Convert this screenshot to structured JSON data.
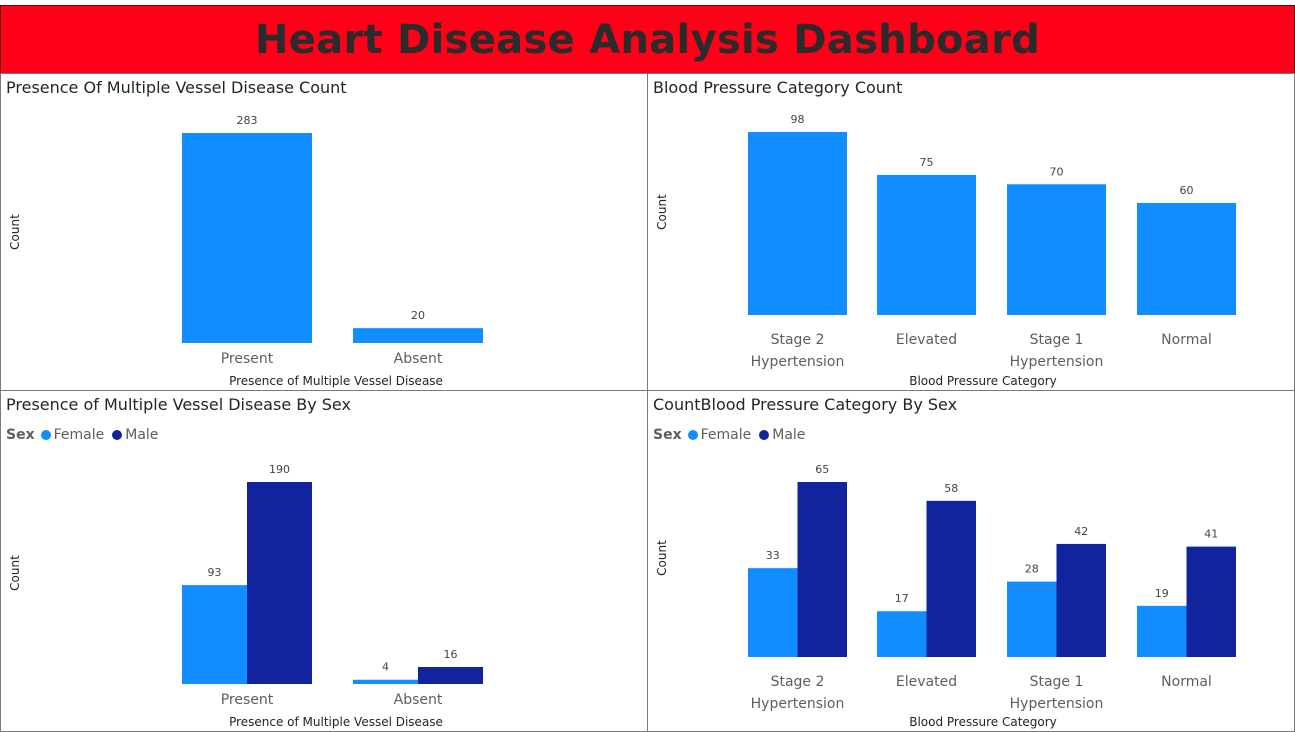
{
  "dashboard": {
    "title": "Heart Disease Analysis Dashboard"
  },
  "colors": {
    "banner": "#ff0018",
    "female": "#118dff",
    "male": "#12239e",
    "single": "#118dff"
  },
  "legend": {
    "title": "Sex",
    "female": "Female",
    "male": "Male"
  },
  "chart_data": [
    {
      "id": "c1",
      "type": "bar",
      "title": "Presence Of Multiple Vessel Disease Count",
      "xlabel": "Presence of Multiple Vessel Disease",
      "ylabel": "Count",
      "categories": [
        [
          "Present"
        ],
        [
          "Absent"
        ]
      ],
      "series": [
        {
          "values": [
            283,
            20
          ]
        }
      ],
      "ylim": [
        0,
        283
      ]
    },
    {
      "id": "c2",
      "type": "bar",
      "title": "Blood Pressure Category Count",
      "xlabel": "Blood Pressure Category",
      "ylabel": "Count",
      "categories": [
        [
          "Stage 2",
          "Hypertension"
        ],
        [
          "Elevated"
        ],
        [
          "Stage 1",
          "Hypertension"
        ],
        [
          "Normal"
        ]
      ],
      "series": [
        {
          "values": [
            98,
            75,
            70,
            60
          ]
        }
      ],
      "ylim": [
        0,
        98
      ]
    },
    {
      "id": "c3",
      "type": "bar",
      "title": "Presence of Multiple Vessel Disease By Sex",
      "xlabel": "Presence of Multiple Vessel Disease",
      "ylabel": "Count",
      "categories": [
        [
          "Present"
        ],
        [
          "Absent"
        ]
      ],
      "series": [
        {
          "name": "Female",
          "values": [
            93,
            4
          ]
        },
        {
          "name": "Male",
          "values": [
            190,
            16
          ]
        }
      ],
      "ylim": [
        0,
        190
      ]
    },
    {
      "id": "c4",
      "type": "bar",
      "title": "CountBlood Pressure Category By Sex",
      "xlabel": "Blood Pressure Category",
      "ylabel": "Count",
      "categories": [
        [
          "Stage 2",
          "Hypertension"
        ],
        [
          "Elevated"
        ],
        [
          "Stage 1",
          "Hypertension"
        ],
        [
          "Normal"
        ]
      ],
      "series": [
        {
          "name": "Female",
          "values": [
            33,
            17,
            28,
            19
          ]
        },
        {
          "name": "Male",
          "values": [
            65,
            58,
            42,
            41
          ]
        }
      ],
      "ylim": [
        0,
        65
      ]
    }
  ]
}
